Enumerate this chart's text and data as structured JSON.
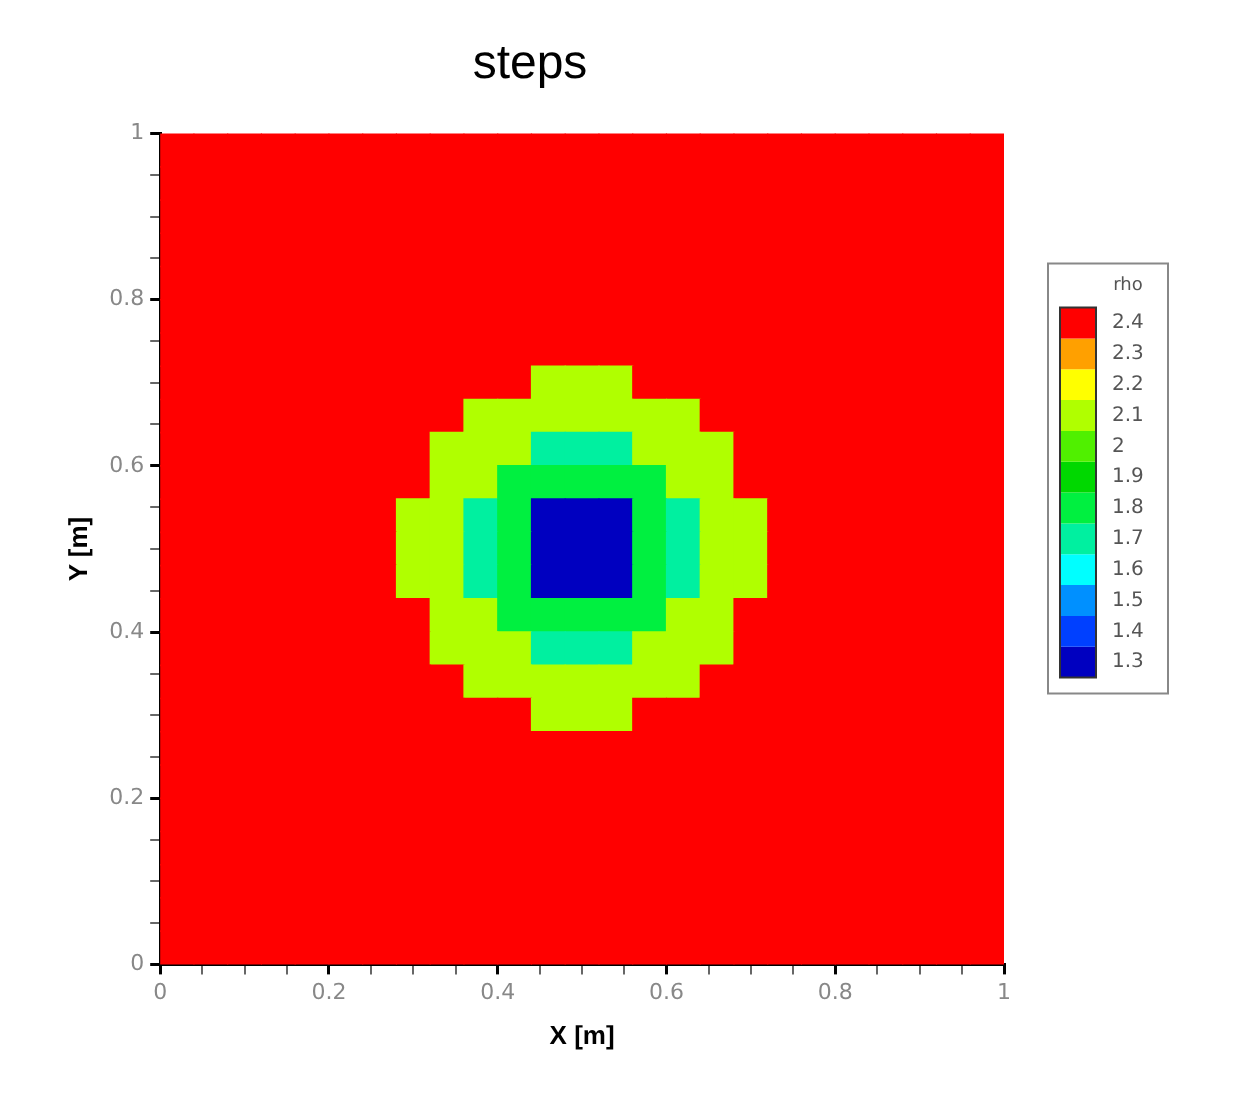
{
  "chart_data": {
    "type": "heatmap",
    "title": "steps",
    "xlabel": "X [m]",
    "ylabel": "Y [m]",
    "clabel": "rho",
    "x": [
      0.02,
      0.06,
      0.1,
      0.14,
      0.18,
      0.22,
      0.26,
      0.3,
      0.34,
      0.38,
      0.42,
      0.46,
      0.5,
      0.54,
      0.58,
      0.62,
      0.66,
      0.7,
      0.74,
      0.78,
      0.82,
      0.86,
      0.9,
      0.94,
      0.98
    ],
    "y": [
      0.98,
      0.94,
      0.9,
      0.86,
      0.82,
      0.78,
      0.74,
      0.7,
      0.66,
      0.62,
      0.58,
      0.54,
      0.5,
      0.46,
      0.42,
      0.38,
      0.34,
      0.3,
      0.26,
      0.22,
      0.18,
      0.14,
      0.1,
      0.06,
      0.02
    ],
    "xlim": [
      0,
      1
    ],
    "ylim": [
      0,
      1
    ],
    "xticks": [
      0,
      {
        "value": 0.05,
        "label": null
      },
      {
        "value": 0.1,
        "label": null
      },
      {
        "value": 0.15,
        "label": null
      },
      0.2,
      {
        "value": 0.25,
        "label": null
      },
      {
        "value": 0.3,
        "label": null
      },
      {
        "value": 0.35,
        "label": null
      },
      0.4,
      {
        "value": 0.45,
        "label": null
      },
      {
        "value": 0.5,
        "label": null
      },
      {
        "value": 0.55,
        "label": null
      },
      0.6,
      {
        "value": 0.65,
        "label": null
      },
      {
        "value": 0.7,
        "label": null
      },
      {
        "value": 0.75,
        "label": null
      },
      0.8,
      {
        "value": 0.85,
        "label": null
      },
      {
        "value": 0.9,
        "label": null
      },
      {
        "value": 0.95,
        "label": null
      },
      1
    ],
    "yticks": [
      0,
      {
        "value": 0.05,
        "label": null
      },
      {
        "value": 0.1,
        "label": null
      },
      {
        "value": 0.15,
        "label": null
      },
      0.2,
      {
        "value": 0.25,
        "label": null
      },
      {
        "value": 0.3,
        "label": null
      },
      {
        "value": 0.35,
        "label": null
      },
      0.4,
      {
        "value": 0.45,
        "label": null
      },
      {
        "value": 0.5,
        "label": null
      },
      {
        "value": 0.55,
        "label": null
      },
      0.6,
      {
        "value": 0.65,
        "label": null
      },
      {
        "value": 0.7,
        "label": null
      },
      {
        "value": 0.75,
        "label": null
      },
      0.8,
      {
        "value": 0.85,
        "label": null
      },
      {
        "value": 0.9,
        "label": null
      },
      {
        "value": 0.95,
        "label": null
      },
      1
    ],
    "clim": [
      1.25,
      2.45
    ],
    "cticks": [
      1.3,
      1.4,
      1.5,
      1.6,
      1.7,
      1.8,
      1.9,
      2,
      2.1,
      2.2,
      2.3,
      2.4
    ],
    "cells": [
      [
        2.4,
        2.4,
        2.4,
        2.4,
        2.4,
        2.4,
        2.4,
        2.4,
        2.4,
        2.4,
        2.4,
        2.4,
        2.4,
        2.4,
        2.4,
        2.4,
        2.4,
        2.4,
        2.4,
        2.4,
        2.4,
        2.4,
        2.4,
        2.4,
        2.4
      ],
      [
        2.4,
        2.4,
        2.4,
        2.4,
        2.4,
        2.4,
        2.4,
        2.4,
        2.4,
        2.4,
        2.4,
        2.4,
        2.4,
        2.4,
        2.4,
        2.4,
        2.4,
        2.4,
        2.4,
        2.4,
        2.4,
        2.4,
        2.4,
        2.4,
        2.4
      ],
      [
        2.4,
        2.4,
        2.4,
        2.4,
        2.4,
        2.4,
        2.4,
        2.4,
        2.4,
        2.4,
        2.4,
        2.4,
        2.4,
        2.4,
        2.4,
        2.4,
        2.4,
        2.4,
        2.4,
        2.4,
        2.4,
        2.4,
        2.4,
        2.4,
        2.4
      ],
      [
        2.4,
        2.4,
        2.4,
        2.4,
        2.4,
        2.4,
        2.4,
        2.4,
        2.4,
        2.4,
        2.4,
        2.4,
        2.4,
        2.4,
        2.4,
        2.4,
        2.4,
        2.4,
        2.4,
        2.4,
        2.4,
        2.4,
        2.4,
        2.4,
        2.4
      ],
      [
        2.4,
        2.4,
        2.4,
        2.4,
        2.4,
        2.4,
        2.4,
        2.4,
        2.4,
        2.4,
        2.4,
        2.4,
        2.4,
        2.4,
        2.4,
        2.4,
        2.4,
        2.4,
        2.4,
        2.4,
        2.4,
        2.4,
        2.4,
        2.4,
        2.4
      ],
      [
        2.4,
        2.4,
        2.4,
        2.4,
        2.4,
        2.4,
        2.4,
        2.4,
        2.4,
        2.4,
        2.4,
        2.4,
        2.4,
        2.4,
        2.4,
        2.4,
        2.4,
        2.4,
        2.4,
        2.4,
        2.4,
        2.4,
        2.4,
        2.4,
        2.4
      ],
      [
        2.4,
        2.4,
        2.4,
        2.4,
        2.4,
        2.4,
        2.4,
        2.4,
        2.4,
        2.4,
        2.4,
        2.4,
        2.4,
        2.4,
        2.4,
        2.4,
        2.4,
        2.4,
        2.4,
        2.4,
        2.4,
        2.4,
        2.4,
        2.4,
        2.4
      ],
      [
        2.4,
        2.4,
        2.4,
        2.4,
        2.4,
        2.4,
        2.4,
        2.4,
        2.4,
        2.4,
        2.4,
        2.1,
        2.1,
        2.1,
        2.4,
        2.4,
        2.4,
        2.4,
        2.4,
        2.4,
        2.4,
        2.4,
        2.4,
        2.4,
        2.4
      ],
      [
        2.4,
        2.4,
        2.4,
        2.4,
        2.4,
        2.4,
        2.4,
        2.4,
        2.4,
        2.1,
        2.1,
        2.1,
        2.1,
        2.1,
        2.1,
        2.1,
        2.4,
        2.4,
        2.4,
        2.4,
        2.4,
        2.4,
        2.4,
        2.4,
        2.4
      ],
      [
        2.4,
        2.4,
        2.4,
        2.4,
        2.4,
        2.4,
        2.4,
        2.4,
        2.1,
        2.1,
        2.1,
        1.7,
        1.7,
        1.7,
        2.1,
        2.1,
        2.1,
        2.4,
        2.4,
        2.4,
        2.4,
        2.4,
        2.4,
        2.4,
        2.4
      ],
      [
        2.4,
        2.4,
        2.4,
        2.4,
        2.4,
        2.4,
        2.4,
        2.4,
        2.1,
        2.1,
        1.8,
        1.8,
        1.8,
        1.8,
        1.8,
        2.1,
        2.1,
        2.4,
        2.4,
        2.4,
        2.4,
        2.4,
        2.4,
        2.4,
        2.4
      ],
      [
        2.4,
        2.4,
        2.4,
        2.4,
        2.4,
        2.4,
        2.4,
        2.1,
        2.1,
        1.7,
        1.8,
        1.3,
        1.3,
        1.3,
        1.8,
        1.7,
        2.1,
        2.1,
        2.4,
        2.4,
        2.4,
        2.4,
        2.4,
        2.4,
        2.4
      ],
      [
        2.4,
        2.4,
        2.4,
        2.4,
        2.4,
        2.4,
        2.4,
        2.1,
        2.1,
        1.7,
        1.8,
        1.3,
        1.3,
        1.3,
        1.8,
        1.7,
        2.1,
        2.1,
        2.4,
        2.4,
        2.4,
        2.4,
        2.4,
        2.4,
        2.4
      ],
      [
        2.4,
        2.4,
        2.4,
        2.4,
        2.4,
        2.4,
        2.4,
        2.1,
        2.1,
        1.7,
        1.8,
        1.3,
        1.3,
        1.3,
        1.8,
        1.7,
        2.1,
        2.1,
        2.4,
        2.4,
        2.4,
        2.4,
        2.4,
        2.4,
        2.4
      ],
      [
        2.4,
        2.4,
        2.4,
        2.4,
        2.4,
        2.4,
        2.4,
        2.4,
        2.1,
        2.1,
        1.8,
        1.8,
        1.8,
        1.8,
        1.8,
        2.1,
        2.1,
        2.4,
        2.4,
        2.4,
        2.4,
        2.4,
        2.4,
        2.4,
        2.4
      ],
      [
        2.4,
        2.4,
        2.4,
        2.4,
        2.4,
        2.4,
        2.4,
        2.4,
        2.1,
        2.1,
        2.1,
        1.7,
        1.7,
        1.7,
        2.1,
        2.1,
        2.1,
        2.4,
        2.4,
        2.4,
        2.4,
        2.4,
        2.4,
        2.4,
        2.4
      ],
      [
        2.4,
        2.4,
        2.4,
        2.4,
        2.4,
        2.4,
        2.4,
        2.4,
        2.4,
        2.1,
        2.1,
        2.1,
        2.1,
        2.1,
        2.1,
        2.1,
        2.4,
        2.4,
        2.4,
        2.4,
        2.4,
        2.4,
        2.4,
        2.4,
        2.4
      ],
      [
        2.4,
        2.4,
        2.4,
        2.4,
        2.4,
        2.4,
        2.4,
        2.4,
        2.4,
        2.4,
        2.4,
        2.1,
        2.1,
        2.1,
        2.4,
        2.4,
        2.4,
        2.4,
        2.4,
        2.4,
        2.4,
        2.4,
        2.4,
        2.4,
        2.4
      ],
      [
        2.4,
        2.4,
        2.4,
        2.4,
        2.4,
        2.4,
        2.4,
        2.4,
        2.4,
        2.4,
        2.4,
        2.4,
        2.4,
        2.4,
        2.4,
        2.4,
        2.4,
        2.4,
        2.4,
        2.4,
        2.4,
        2.4,
        2.4,
        2.4,
        2.4
      ],
      [
        2.4,
        2.4,
        2.4,
        2.4,
        2.4,
        2.4,
        2.4,
        2.4,
        2.4,
        2.4,
        2.4,
        2.4,
        2.4,
        2.4,
        2.4,
        2.4,
        2.4,
        2.4,
        2.4,
        2.4,
        2.4,
        2.4,
        2.4,
        2.4,
        2.4
      ],
      [
        2.4,
        2.4,
        2.4,
        2.4,
        2.4,
        2.4,
        2.4,
        2.4,
        2.4,
        2.4,
        2.4,
        2.4,
        2.4,
        2.4,
        2.4,
        2.4,
        2.4,
        2.4,
        2.4,
        2.4,
        2.4,
        2.4,
        2.4,
        2.4,
        2.4
      ],
      [
        2.4,
        2.4,
        2.4,
        2.4,
        2.4,
        2.4,
        2.4,
        2.4,
        2.4,
        2.4,
        2.4,
        2.4,
        2.4,
        2.4,
        2.4,
        2.4,
        2.4,
        2.4,
        2.4,
        2.4,
        2.4,
        2.4,
        2.4,
        2.4,
        2.4
      ],
      [
        2.4,
        2.4,
        2.4,
        2.4,
        2.4,
        2.4,
        2.4,
        2.4,
        2.4,
        2.4,
        2.4,
        2.4,
        2.4,
        2.4,
        2.4,
        2.4,
        2.4,
        2.4,
        2.4,
        2.4,
        2.4,
        2.4,
        2.4,
        2.4,
        2.4
      ],
      [
        2.4,
        2.4,
        2.4,
        2.4,
        2.4,
        2.4,
        2.4,
        2.4,
        2.4,
        2.4,
        2.4,
        2.4,
        2.4,
        2.4,
        2.4,
        2.4,
        2.4,
        2.4,
        2.4,
        2.4,
        2.4,
        2.4,
        2.4,
        2.4,
        2.4
      ],
      [
        2.4,
        2.4,
        2.4,
        2.4,
        2.4,
        2.4,
        2.4,
        2.4,
        2.4,
        2.4,
        2.4,
        2.4,
        2.4,
        2.4,
        2.4,
        2.4,
        2.4,
        2.4,
        2.4,
        2.4,
        2.4,
        2.4,
        2.4,
        2.4,
        2.4
      ]
    ]
  }
}
